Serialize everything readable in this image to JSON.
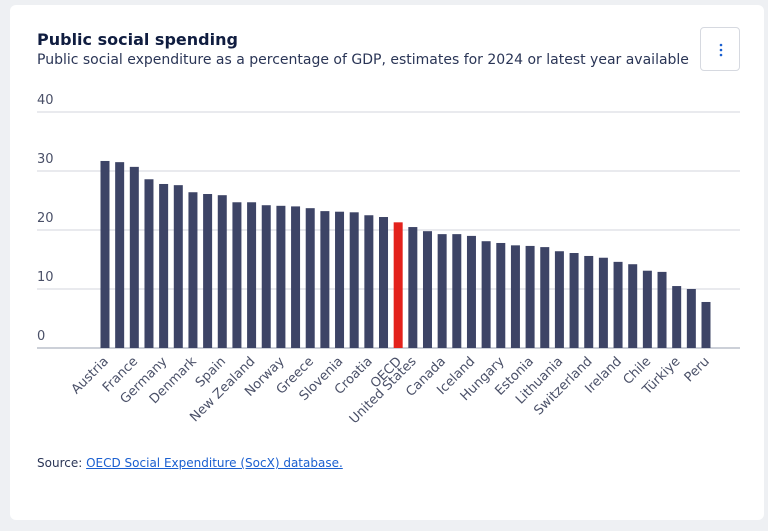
{
  "chart_data": {
    "type": "bar",
    "title": "Public social spending",
    "subtitle": "Public social expenditure as a percentage of GDP, estimates for 2024 or latest year available",
    "categories": [
      "Austria",
      null,
      "France",
      null,
      "Germany",
      null,
      "Denmark",
      null,
      "Spain",
      null,
      "New Zealand",
      null,
      "Norway",
      null,
      "Greece",
      null,
      "Slovenia",
      null,
      "Croatia",
      null,
      "OECD",
      "United States",
      null,
      "Canada",
      null,
      "Iceland",
      null,
      "Hungary",
      null,
      "Estonia",
      null,
      "Lithuania",
      null,
      "Switzerland",
      null,
      "Ireland",
      null,
      "Chile",
      null,
      "Türkiye",
      null,
      "Peru"
    ],
    "values": [
      31.7,
      31.5,
      30.7,
      28.6,
      27.8,
      27.6,
      26.4,
      26.1,
      25.9,
      24.7,
      24.7,
      24.2,
      24.1,
      24.0,
      23.7,
      23.2,
      23.1,
      23.0,
      22.5,
      22.2,
      21.3,
      20.5,
      19.8,
      19.3,
      19.3,
      19.0,
      18.1,
      17.8,
      17.4,
      17.3,
      17.1,
      16.4,
      16.1,
      15.6,
      15.3,
      14.6,
      14.2,
      13.1,
      12.9,
      10.5,
      10.0,
      7.8
    ],
    "color": "#3d4466",
    "highlight": {
      "category": "OECD",
      "color": "#e3221c"
    },
    "ylim": [
      0,
      40
    ],
    "yticks": [
      0,
      10,
      20,
      30,
      40
    ],
    "grid": true,
    "source": {
      "prefix": "Source:",
      "link": "OECD Social Expenditure (SocX) database."
    }
  }
}
